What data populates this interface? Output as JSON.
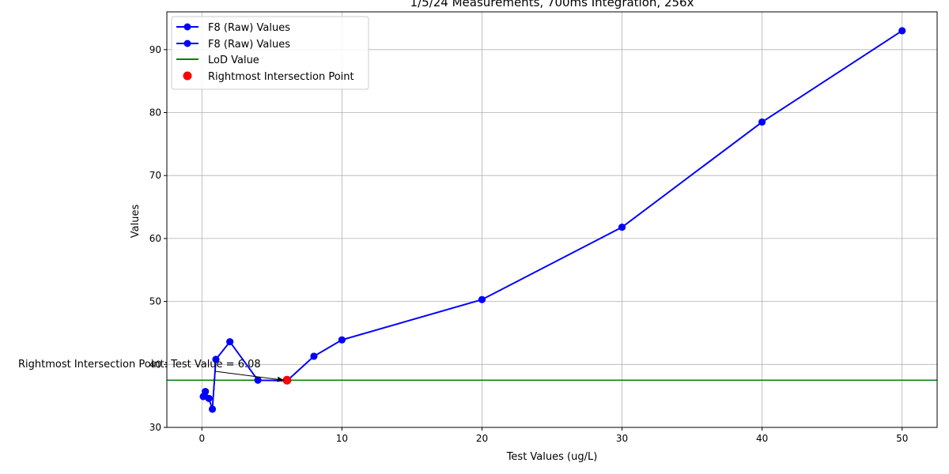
{
  "chart_data": {
    "type": "line",
    "title": "1/5/24 Measurements, 700ms Integration, 256x",
    "xlabel": "Test Values (ug/L)",
    "ylabel": "Values",
    "xlim": [
      -2.5,
      52.5
    ],
    "ylim": [
      30,
      96
    ],
    "xticks": [
      0,
      10,
      20,
      30,
      40,
      50
    ],
    "yticks": [
      30,
      40,
      50,
      60,
      70,
      80,
      90
    ],
    "grid": true,
    "legend_position": "upper-left",
    "series": [
      {
        "name": "F8 (Raw) Values",
        "color": "#0000ff",
        "marker": "circle",
        "x": [
          0.1,
          0.25,
          0.5,
          0.75,
          1,
          2,
          4,
          6.08,
          8,
          10,
          20,
          30,
          40,
          50
        ],
        "y": [
          34.9,
          35.7,
          34.6,
          32.9,
          40.8,
          43.6,
          37.5,
          37.4,
          41.3,
          43.9,
          50.3,
          61.8,
          78.5,
          93.0
        ]
      },
      {
        "name": "F8 (Raw) Values",
        "color": "#0000ff",
        "marker": "circle",
        "x": [
          0.1,
          0.25,
          0.5,
          0.75,
          1,
          2,
          4,
          6.08,
          8,
          10,
          20,
          30,
          40,
          50
        ],
        "y": [
          34.9,
          35.7,
          34.6,
          32.9,
          40.8,
          43.6,
          37.5,
          37.4,
          41.3,
          43.9,
          50.3,
          61.8,
          78.5,
          93.0
        ]
      }
    ],
    "lod": {
      "name": "LoD Value",
      "value": 37.5,
      "color": "#008000"
    },
    "intersection": {
      "name": "Rightmost Intersection Point",
      "x": 6.08,
      "y": 37.5,
      "color": "#ff0000",
      "annotation": "Rightmost Intersection Point: Test Value = 6.08"
    }
  }
}
